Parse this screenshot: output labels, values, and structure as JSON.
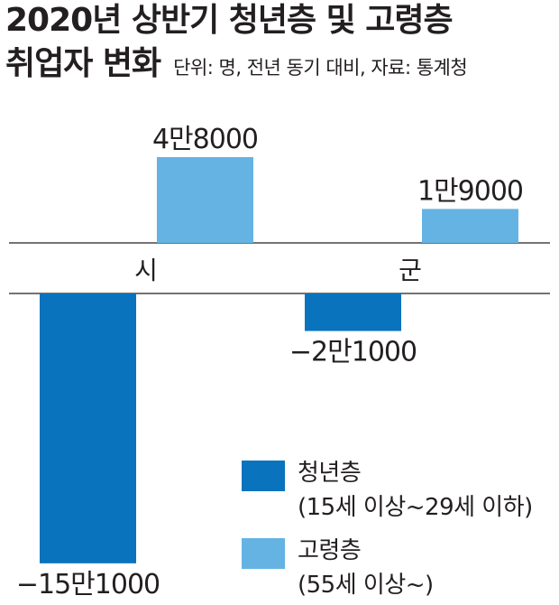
{
  "title_line1": "2020년 상반기 청년층 및 고령층",
  "title_line2": "취업자 변화",
  "subtitle": "단위: 명, 전년 동기 대비, 자료: 통계청",
  "colors": {
    "youth": "#0a73bd",
    "elderly": "#64b3e3",
    "axis": "#231f20"
  },
  "chart_data": {
    "type": "bar",
    "categories": [
      "시",
      "군"
    ],
    "series": [
      {
        "name": "청년층",
        "values": [
          -151000,
          -21000
        ],
        "labels": [
          "−15만1000",
          "−2만1000"
        ]
      },
      {
        "name": "고령층",
        "values": [
          48000,
          19000
        ],
        "labels": [
          "4만8000",
          "1만9000"
        ]
      }
    ],
    "title": "2020년 상반기 청년층 및 고령층 취업자 변화",
    "subtitle": "단위: 명, 전년 동기 대비, 자료: 통계청"
  },
  "legend": [
    {
      "series": "청년층",
      "line1": "청년층",
      "line2": "(15세 이상~29세 이하)"
    },
    {
      "series": "고령층",
      "line1": "고령층",
      "line2": "(55세 이상~)"
    }
  ]
}
